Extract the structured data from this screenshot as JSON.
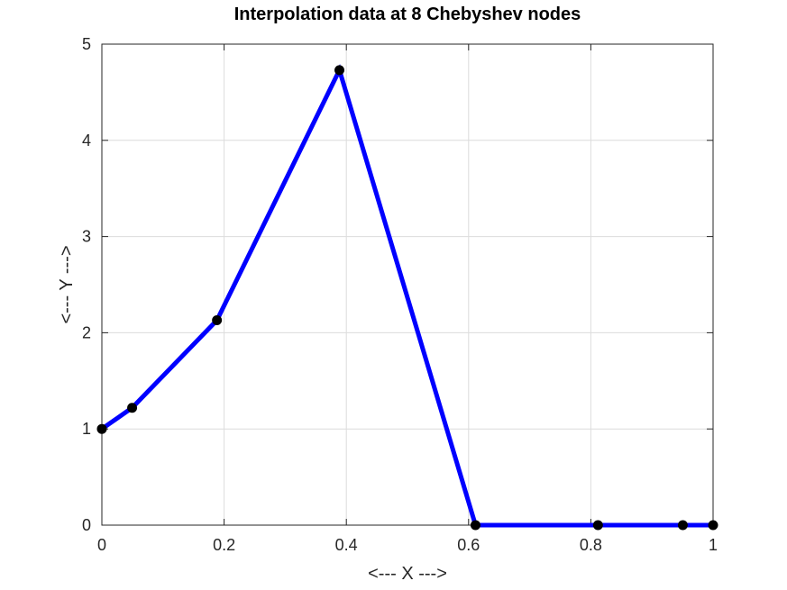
{
  "chart_data": {
    "type": "line",
    "title": "Interpolation data at 8 Chebyshev nodes",
    "xlabel": "<--- X --->",
    "ylabel": "<---  Y --->",
    "xlim": [
      0,
      1
    ],
    "ylim": [
      0,
      5
    ],
    "xticks": [
      0,
      0.2,
      0.4,
      0.6,
      0.8,
      1
    ],
    "xtick_labels": [
      "0",
      "0.2",
      "0.4",
      "0.6",
      "0.8",
      "1"
    ],
    "yticks": [
      0,
      1,
      2,
      3,
      4,
      5
    ],
    "ytick_labels": [
      "0",
      "1",
      "2",
      "3",
      "4",
      "5"
    ],
    "grid": true,
    "series": [
      {
        "x": [
          0,
          0.0495,
          0.1883,
          0.3887,
          0.6113,
          0.8117,
          0.9505,
          1
        ],
        "values": [
          1.0,
          1.22,
          2.13,
          4.73,
          0.0,
          0.0,
          0.0,
          0.0
        ],
        "line_color": "#0000ff",
        "marker_color": "#000000"
      }
    ]
  }
}
